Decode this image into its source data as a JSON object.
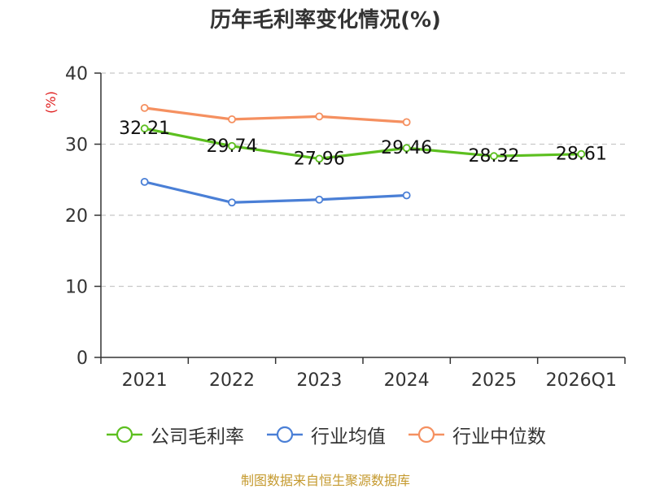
{
  "title": "历年毛利率变化情况(%)",
  "source_note": "制图数据来自恒生聚源数据库",
  "colors": {
    "company": "#5cbf1f",
    "industry_avg": "#4a7fd6",
    "industry_median": "#f59060",
    "unit_label": "#e02020",
    "grid": "#c8c8c8",
    "axis": "#333333"
  },
  "chart_data": {
    "type": "line",
    "title": "历年毛利率变化情况(%)",
    "ylabel": "(%)",
    "xlabel": "",
    "categories": [
      "2021",
      "2022",
      "2023",
      "2024",
      "2025",
      "2026Q1"
    ],
    "ylim": [
      0,
      40
    ],
    "yticks": [
      0,
      10,
      20,
      30,
      40
    ],
    "grid": true,
    "legend_position": "bottom",
    "series": [
      {
        "name": "公司毛利率",
        "color_key": "company",
        "values": [
          32.21,
          29.74,
          27.96,
          29.46,
          28.32,
          28.61
        ],
        "labels": [
          "32.21",
          "29.74",
          "27.96",
          "29.46",
          "28.32",
          "28.61"
        ]
      },
      {
        "name": "行业均值",
        "color_key": "industry_avg",
        "values": [
          24.7,
          21.8,
          22.2,
          22.8,
          null,
          null
        ]
      },
      {
        "name": "行业中位数",
        "color_key": "industry_median",
        "values": [
          35.1,
          33.5,
          33.9,
          33.1,
          null,
          null
        ]
      }
    ]
  }
}
